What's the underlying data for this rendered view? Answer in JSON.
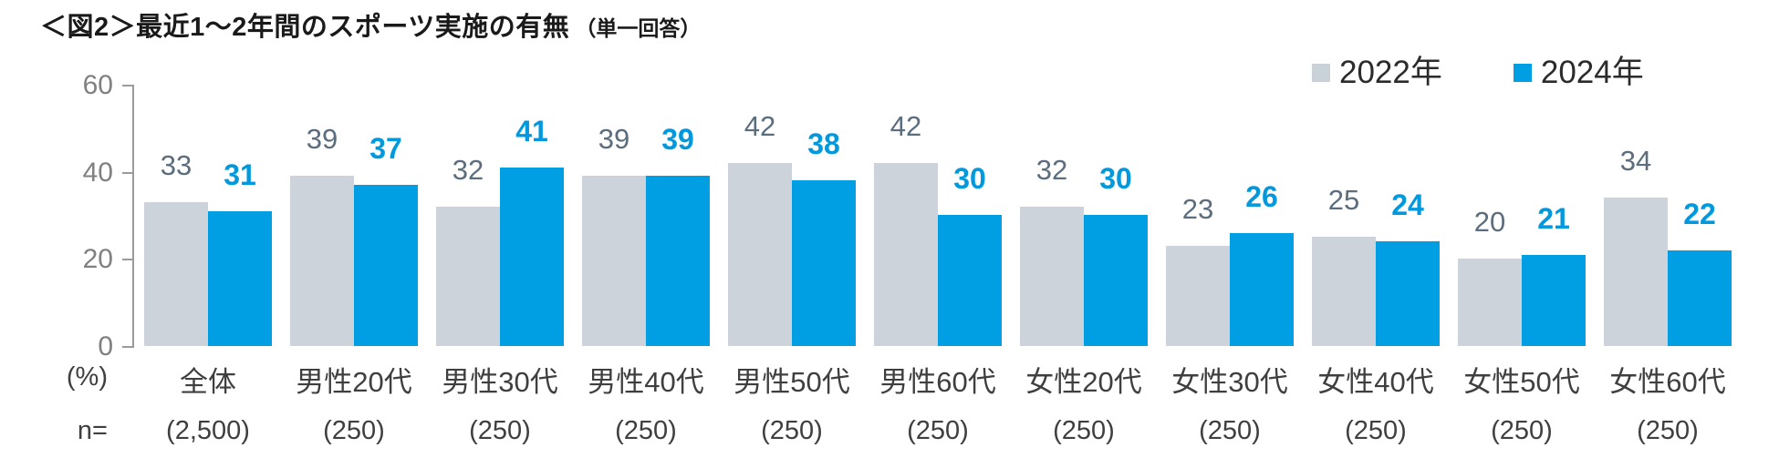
{
  "title": {
    "main": "＜図2＞最近1～2年間のスポーツ実施の有無",
    "sub": "（単一回答）"
  },
  "legend": {
    "position": "top-right",
    "items": [
      {
        "label": "2022年",
        "color": "#C9D1D9"
      },
      {
        "label": "2024年",
        "color": "#009FE3"
      }
    ]
  },
  "axis": {
    "percent_label": "(%)",
    "n_prefix": "n=",
    "ticks": [
      0,
      20,
      40,
      60
    ]
  },
  "chart_data": {
    "type": "bar",
    "title": "＜図2＞最近1～2年間のスポーツ実施の有無（単一回答）",
    "xlabel": "",
    "ylabel": "(%)",
    "ylim": [
      0,
      60
    ],
    "grid": false,
    "legend_position": "top-right",
    "categories": [
      "全体",
      "男性20代",
      "男性30代",
      "男性40代",
      "男性50代",
      "男性60代",
      "女性20代",
      "女性30代",
      "女性40代",
      "女性50代",
      "女性60代"
    ],
    "n_values": [
      "(2,500)",
      "(250)",
      "(250)",
      "(250)",
      "(250)",
      "(250)",
      "(250)",
      "(250)",
      "(250)",
      "(250)",
      "(250)"
    ],
    "series": [
      {
        "name": "2022年",
        "color": "#CDD3DA",
        "label_color": "#5C6D7E",
        "values": [
          33,
          39,
          32,
          39,
          42,
          42,
          32,
          23,
          25,
          20,
          34
        ]
      },
      {
        "name": "2024年",
        "color": "#009FE3",
        "label_color": "#0099DE",
        "values": [
          31,
          37,
          41,
          39,
          38,
          30,
          30,
          26,
          24,
          21,
          22
        ]
      }
    ]
  }
}
